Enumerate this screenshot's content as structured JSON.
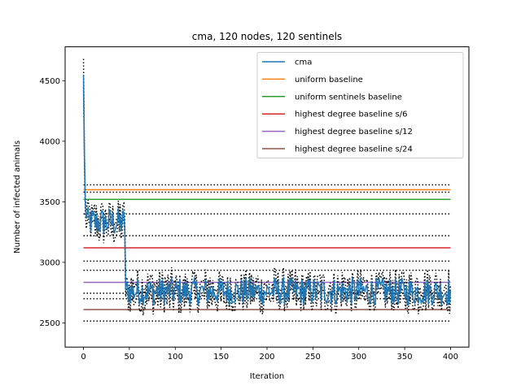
{
  "chart_data": {
    "type": "line",
    "title": "cma, 120 nodes, 120 sentinels",
    "xlabel": "Iteration",
    "ylabel": "Number of infected animals",
    "xlim": [
      -20,
      420
    ],
    "ylim": [
      2300,
      4780
    ],
    "x_ticks": [
      0,
      50,
      100,
      150,
      200,
      250,
      300,
      350,
      400
    ],
    "y_ticks": [
      2500,
      3000,
      3500,
      4000,
      4500
    ],
    "grid": false,
    "legend_position": "top-right",
    "series": [
      {
        "name": "cma",
        "color": "#1f77b4",
        "style": "noisy-line",
        "x_range": [
          0,
          400
        ],
        "phases": [
          {
            "x_start": 0,
            "x_end": 1,
            "values": [
              4550,
              3900
            ]
          },
          {
            "x_start": 1,
            "x_end": 45,
            "mean": 3330,
            "noise": 70
          },
          {
            "x_start": 45,
            "x_end": 400,
            "mean": 2760,
            "noise": 65
          }
        ]
      },
      {
        "name": "uniform baseline",
        "color": "#ff7f0e",
        "value": 3600,
        "x_range": [
          0,
          400
        ]
      },
      {
        "name": "uniform sentinels baseline",
        "color": "#2ca02c",
        "value": 3520,
        "x_range": [
          0,
          400
        ]
      },
      {
        "name": "highest degree baseline s/6",
        "color": "#d62728",
        "value": 3120,
        "x_range": [
          0,
          400
        ]
      },
      {
        "name": "highest degree baseline s/12",
        "color": "#9467bd",
        "value": 2835,
        "x_range": [
          0,
          400
        ]
      },
      {
        "name": "highest degree baseline s/24",
        "color": "#8c564b",
        "value": 2610,
        "x_range": [
          0,
          400
        ]
      }
    ],
    "dotted_reference_lines": {
      "color": "#000000",
      "x_range": [
        0,
        400
      ],
      "values": [
        3640,
        3580,
        3400,
        3220,
        3010,
        2935,
        2745,
        2700,
        2515
      ]
    },
    "cma_envelope": {
      "color": "#000000",
      "style": "dotted",
      "upper_offset": 60,
      "lower_offset": 60,
      "spike_max": 4680,
      "spike_min": 4450
    }
  }
}
